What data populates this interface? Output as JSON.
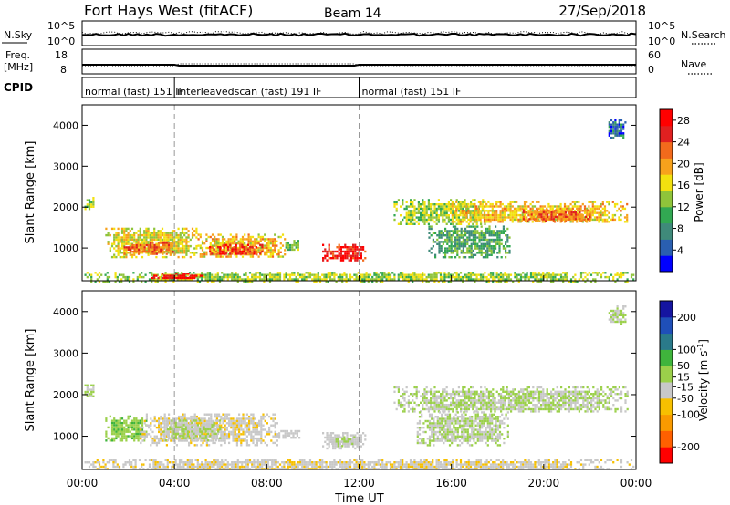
{
  "header": {
    "station": "Fort Hays West (fitACF)",
    "beam": "Beam 14",
    "date": "27/Sep/2018"
  },
  "strip_panels": {
    "noise": {
      "left_label": "N.Sky",
      "right_label": "N.Search",
      "left_ticks": [
        "10^5",
        "10^0"
      ],
      "right_ticks": [
        "10^5",
        "10^0"
      ]
    },
    "freq": {
      "left_label": "Freq.",
      "left_unit": "[MHz]",
      "right_label": "Nave",
      "left_ticks": [
        "18",
        "8"
      ],
      "right_ticks": [
        "60",
        "0"
      ]
    },
    "cpid": {
      "label": "CPID",
      "segments": [
        {
          "start_h": 0,
          "end_h": 4,
          "text": "normal (fast) 151 IF"
        },
        {
          "start_h": 4,
          "end_h": 12,
          "text": "interleavedscan (fast) 191 IF"
        },
        {
          "start_h": 12,
          "end_h": 24,
          "text": "normal (fast) 151 IF"
        }
      ]
    }
  },
  "colors": {
    "power_scale": [
      "#0000ff",
      "#2a5fb0",
      "#3f8a7a",
      "#32a852",
      "#8fc43a",
      "#f2e10f",
      "#f7a21c",
      "#f26a1c",
      "#e02020",
      "#ff0000"
    ],
    "velocity_scale": [
      "#ff0000",
      "#ff6000",
      "#f99a00",
      "#f7c000",
      "#c8c8c8",
      "#9bd04a",
      "#3fb43c",
      "#2a7a8a",
      "#1f4fb8",
      "#1515a0"
    ]
  },
  "chart_data": [
    {
      "type": "heatmap",
      "name": "power",
      "xlabel": "",
      "ylabel": "Slant Range [km]",
      "xlim": [
        0,
        24
      ],
      "ylim": [
        200,
        4500
      ],
      "yticks": [
        1000,
        2000,
        3000,
        4000
      ],
      "vlines_h": [
        4,
        12
      ],
      "colorbar": {
        "label": "Power [dB]",
        "ticks": [
          4,
          8,
          12,
          16,
          20,
          24,
          28
        ],
        "range": [
          0,
          30
        ]
      },
      "regions": [
        {
          "t0": 0.1,
          "t1": 0.5,
          "r0": 1950,
          "r1": 2250,
          "value": 14
        },
        {
          "t0": 1.0,
          "t1": 5.0,
          "r0": 800,
          "r1": 1500,
          "value": 16
        },
        {
          "t0": 1.8,
          "t1": 4.0,
          "r0": 850,
          "r1": 1150,
          "value": 22
        },
        {
          "t0": 5.0,
          "t1": 8.8,
          "r0": 800,
          "r1": 1350,
          "value": 18
        },
        {
          "t0": 5.5,
          "t1": 7.8,
          "r0": 850,
          "r1": 1100,
          "value": 25
        },
        {
          "t0": 8.8,
          "t1": 9.4,
          "r0": 950,
          "r1": 1200,
          "value": 12
        },
        {
          "t0": 10.4,
          "t1": 12.3,
          "r0": 700,
          "r1": 1100,
          "value": 26
        },
        {
          "t0": 13.5,
          "t1": 17.5,
          "r0": 1600,
          "r1": 2200,
          "value": 14
        },
        {
          "t0": 16.0,
          "t1": 23.6,
          "r0": 1650,
          "r1": 2150,
          "value": 18
        },
        {
          "t0": 19.0,
          "t1": 22.0,
          "r0": 1650,
          "r1": 1950,
          "value": 22
        },
        {
          "t0": 15.0,
          "t1": 18.5,
          "r0": 800,
          "r1": 1550,
          "value": 10
        },
        {
          "t0": 22.8,
          "t1": 23.5,
          "r0": 3700,
          "r1": 4150,
          "value": 6
        },
        {
          "t0": 0.1,
          "t1": 23.9,
          "r0": 200,
          "r1": 420,
          "value": 14
        },
        {
          "t0": 3.0,
          "t1": 5.2,
          "r0": 250,
          "r1": 400,
          "value": 28
        }
      ]
    },
    {
      "type": "heatmap",
      "name": "velocity",
      "xlabel": "Time UT",
      "ylabel": "Slant Range [km]",
      "xlim": [
        0,
        24
      ],
      "ylim": [
        200,
        4500
      ],
      "xticks": [
        "00:00",
        "04:00",
        "08:00",
        "12:00",
        "16:00",
        "20:00",
        "00:00"
      ],
      "yticks": [
        1000,
        2000,
        3000,
        4000
      ],
      "vlines_h": [
        4,
        12
      ],
      "colorbar": {
        "label": "Velocity [m s^-1]",
        "ticks": [
          200,
          100,
          50,
          15,
          -15,
          -50,
          -100,
          -200
        ],
        "range": [
          -250,
          250
        ]
      },
      "regions": [
        {
          "t0": 0.1,
          "t1": 0.5,
          "r0": 1950,
          "r1": 2250,
          "value": 0
        },
        {
          "t0": 1.0,
          "t1": 2.8,
          "r0": 900,
          "r1": 1500,
          "value": 40
        },
        {
          "t0": 2.5,
          "t1": 8.5,
          "r0": 800,
          "r1": 1550,
          "value": -40
        },
        {
          "t0": 3.5,
          "t1": 6.0,
          "r0": 900,
          "r1": 1400,
          "value": 0
        },
        {
          "t0": 8.5,
          "t1": 9.4,
          "r0": 950,
          "r1": 1200,
          "value": -20
        },
        {
          "t0": 10.4,
          "t1": 12.3,
          "r0": 700,
          "r1": 1100,
          "value": -30
        },
        {
          "t0": 10.8,
          "t1": 11.8,
          "r0": 780,
          "r1": 1000,
          "value": 0
        },
        {
          "t0": 13.5,
          "t1": 23.6,
          "r0": 1600,
          "r1": 2200,
          "value": 0
        },
        {
          "t0": 14.5,
          "t1": 18.5,
          "r0": 800,
          "r1": 1600,
          "value": 0
        },
        {
          "t0": 22.8,
          "t1": 23.5,
          "r0": 3700,
          "r1": 4150,
          "value": 0
        },
        {
          "t0": 0.1,
          "t1": 23.9,
          "r0": 200,
          "r1": 450,
          "value": -40
        }
      ]
    }
  ]
}
